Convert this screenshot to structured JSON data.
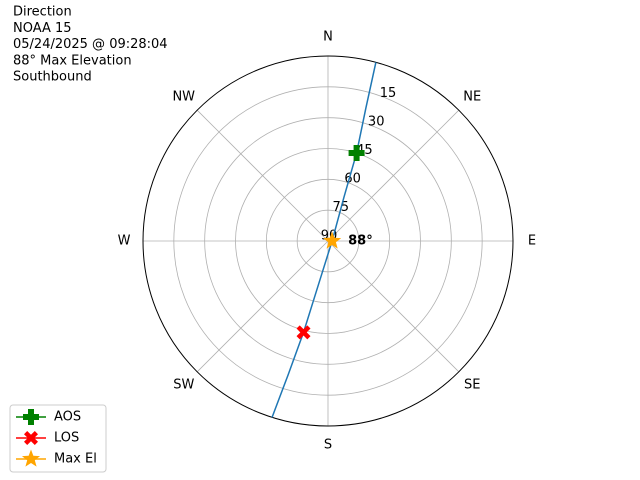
{
  "chart_data": {
    "type": "polar",
    "text_lines": [
      "Direction",
      "NOAA 15",
      "05/24/2025 @ 09:28:04",
      "88° Max Elevation",
      "Southbound"
    ],
    "categories": [
      "N",
      "NE",
      "E",
      "SE",
      "S",
      "SW",
      "W",
      "NW"
    ],
    "ylim": [
      90,
      0
    ],
    "yticks": [
      90,
      75,
      60,
      45,
      30,
      15
    ],
    "grid": true,
    "annotation": "88°",
    "legend": "lower left",
    "series": [
      {
        "color": "#1f77b4",
        "marker": "line",
        "x": [
          15,
          15.9,
          18,
          20,
          90,
          192.5,
          195,
          196.6,
          197.6
        ],
        "values": [
          0,
          22.7,
          45,
          67.2,
          88,
          67.6,
          44,
          22,
          0
        ]
      },
      {
        "name": "AOS",
        "color": "#008000",
        "marker": "plus",
        "x": [
          18
        ],
        "values": [
          45
        ]
      },
      {
        "name": "LOS",
        "color": "#ff0000",
        "marker": "x",
        "x": [
          195
        ],
        "values": [
          44
        ]
      },
      {
        "name": "Max El",
        "color": "#ffa500",
        "marker": "star",
        "x": [
          90
        ],
        "values": [
          88
        ]
      }
    ]
  }
}
